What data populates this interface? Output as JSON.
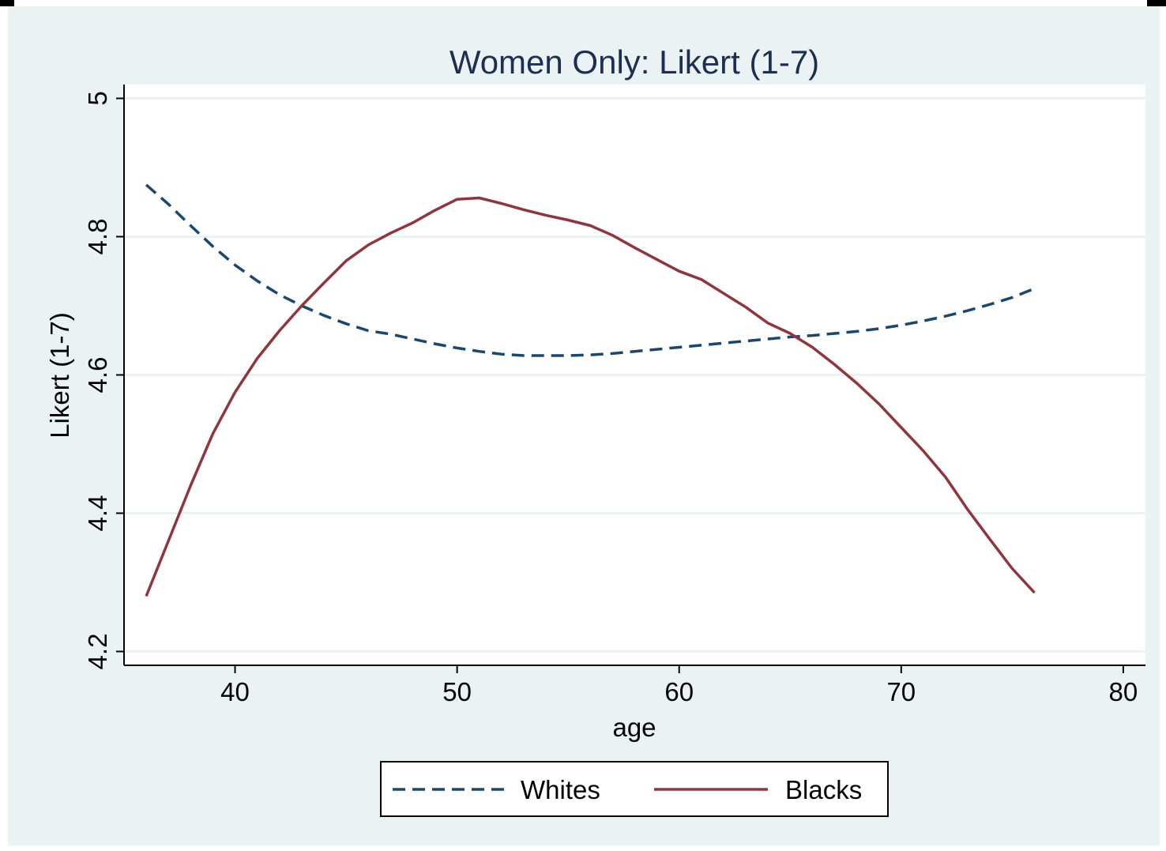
{
  "colors": {
    "background": "#eaf2f3",
    "plot_area": "#ffffff",
    "grid": "#eaf2f3",
    "axis": "#000000",
    "title": "#1a2f52",
    "whites": "#1a476f",
    "blacks": "#90353b"
  },
  "chart_data": {
    "type": "line",
    "title": "Women Only: Likert (1-7)",
    "xlabel": "age",
    "ylabel": "Likert (1-7)",
    "xlim": [
      35,
      81
    ],
    "ylim": [
      4.18,
      5.02
    ],
    "x_ticks": [
      40,
      50,
      60,
      70,
      80
    ],
    "y_ticks": [
      4.2,
      4.4,
      4.6,
      4.8,
      5
    ],
    "x_tick_labels": [
      "40",
      "50",
      "60",
      "70",
      "80"
    ],
    "y_tick_labels": [
      "4.2",
      "4.4",
      "4.6",
      "4.8",
      "5"
    ],
    "grid": true,
    "legend_position": "bottom",
    "series": [
      {
        "name": "Whites",
        "style": "dashed",
        "color": "#1a476f",
        "x": [
          36,
          37,
          38,
          39,
          40,
          41,
          42,
          43,
          44,
          45,
          46,
          47,
          48,
          49,
          50,
          51,
          52,
          53,
          54,
          55,
          56,
          57,
          58,
          59,
          60,
          61,
          62,
          63,
          64,
          65,
          66,
          67,
          68,
          69,
          70,
          71,
          72,
          73,
          74,
          75,
          76
        ],
        "y": [
          4.875,
          4.847,
          4.816,
          4.786,
          4.759,
          4.736,
          4.716,
          4.7,
          4.686,
          4.674,
          4.664,
          4.659,
          4.652,
          4.645,
          4.639,
          4.634,
          4.63,
          4.628,
          4.628,
          4.628,
          4.629,
          4.631,
          4.634,
          4.637,
          4.64,
          4.643,
          4.646,
          4.649,
          4.652,
          4.655,
          4.657,
          4.66,
          4.663,
          4.667,
          4.672,
          4.678,
          4.685,
          4.693,
          4.702,
          4.712,
          4.725
        ]
      },
      {
        "name": "Blacks",
        "style": "solid",
        "color": "#90353b",
        "x": [
          36,
          37,
          38,
          39,
          40,
          41,
          42,
          43,
          44,
          45,
          46,
          47,
          48,
          49,
          50,
          51,
          52,
          53,
          54,
          55,
          56,
          57,
          58,
          59,
          60,
          61,
          62,
          63,
          64,
          65,
          66,
          67,
          68,
          69,
          70,
          71,
          72,
          73,
          74,
          75,
          76
        ],
        "y": [
          4.28,
          4.36,
          4.44,
          4.515,
          4.575,
          4.624,
          4.664,
          4.7,
          4.733,
          4.765,
          4.788,
          4.805,
          4.82,
          4.838,
          4.854,
          4.856,
          4.848,
          4.839,
          4.831,
          4.824,
          4.816,
          4.802,
          4.784,
          4.767,
          4.75,
          4.738,
          4.718,
          4.698,
          4.675,
          4.66,
          4.64,
          4.615,
          4.588,
          4.558,
          4.524,
          4.49,
          4.452,
          4.405,
          4.362,
          4.32,
          4.285
        ]
      }
    ]
  }
}
